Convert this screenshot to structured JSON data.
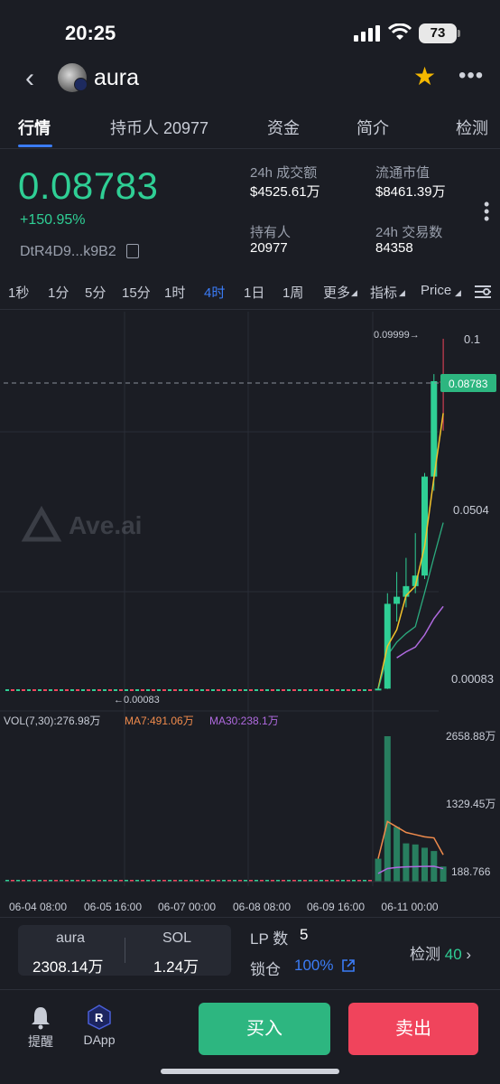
{
  "status": {
    "time": "20:25",
    "battery": "73"
  },
  "header": {
    "token": "aura"
  },
  "tabs": [
    "行情",
    "持币人 20977",
    "资金",
    "简介",
    "检测"
  ],
  "ticker": {
    "price": "0.08783",
    "change": "+150.95%",
    "address": "DtR4D9...k9B2",
    "stats": [
      {
        "label": "24h 成交额",
        "value": "$4525.61万"
      },
      {
        "label": "流通市值",
        "value": "$8461.39万"
      },
      {
        "label": "持有人",
        "value": "20977"
      },
      {
        "label": "24h 交易数",
        "value": "84358"
      }
    ]
  },
  "timeframes": [
    "1秒",
    "1分",
    "5分",
    "15分",
    "1时",
    "4时",
    "1日",
    "1周",
    "更多",
    "指标",
    "Price"
  ],
  "active_timeframe": "4时",
  "chart": {
    "watermark": "Ave.ai",
    "y_ticks": [
      "0.1",
      "0.0504",
      "0.00083"
    ],
    "current_price_label": "0.08783",
    "high_label": "0.09999→",
    "low_label": "←0.00083",
    "vol_legend": {
      "vol": "VOL(7,30):276.98万",
      "ma7": "MA7:491.06万",
      "ma30": "MA30:238.1万"
    },
    "vol_ticks": [
      "2658.88万",
      "1329.45万",
      "188.766"
    ],
    "x_labels": [
      "06-04 08:00",
      "06-05 16:00",
      "06-07 00:00",
      "06-08 08:00",
      "06-09 16:00",
      "06-11 00:00"
    ],
    "colors": {
      "up": "#2fcf95",
      "down": "#f0445c",
      "ma7": "#f2c22b",
      "ma30": "#2fcf95",
      "vol_ma7": "#f08b4c",
      "vol_ma30": "#b06ae0"
    }
  },
  "chart_data": {
    "type": "candlestick",
    "title": "",
    "ylim": [
      0.00083,
      0.1
    ],
    "candles": [
      {
        "o": 0.00083,
        "h": 0.0012,
        "l": 0.00083,
        "c": 0.001
      },
      {
        "o": 0.001,
        "h": 0.028,
        "l": 0.0009,
        "c": 0.025
      },
      {
        "o": 0.025,
        "h": 0.034,
        "l": 0.02,
        "c": 0.027
      },
      {
        "o": 0.027,
        "h": 0.038,
        "l": 0.024,
        "c": 0.03
      },
      {
        "o": 0.03,
        "h": 0.045,
        "l": 0.028,
        "c": 0.033
      },
      {
        "o": 0.033,
        "h": 0.062,
        "l": 0.032,
        "c": 0.061
      },
      {
        "o": 0.061,
        "h": 0.09,
        "l": 0.057,
        "c": 0.088
      },
      {
        "o": 0.088,
        "h": 0.09999,
        "l": 0.074,
        "c": 0.08783
      }
    ]
  },
  "bottom": {
    "pair": [
      {
        "label": "aura",
        "value": "2308.14万"
      },
      {
        "label": "SOL",
        "value": "1.24万"
      }
    ],
    "lp_label": "LP 数",
    "lp_value": "5",
    "lock_label": "锁仓",
    "lock_value": "100%",
    "detect_label": "检测",
    "detect_value": "40"
  },
  "nav": {
    "alert": "提醒",
    "dapp": "DApp",
    "buy": "买入",
    "sell": "卖出"
  }
}
